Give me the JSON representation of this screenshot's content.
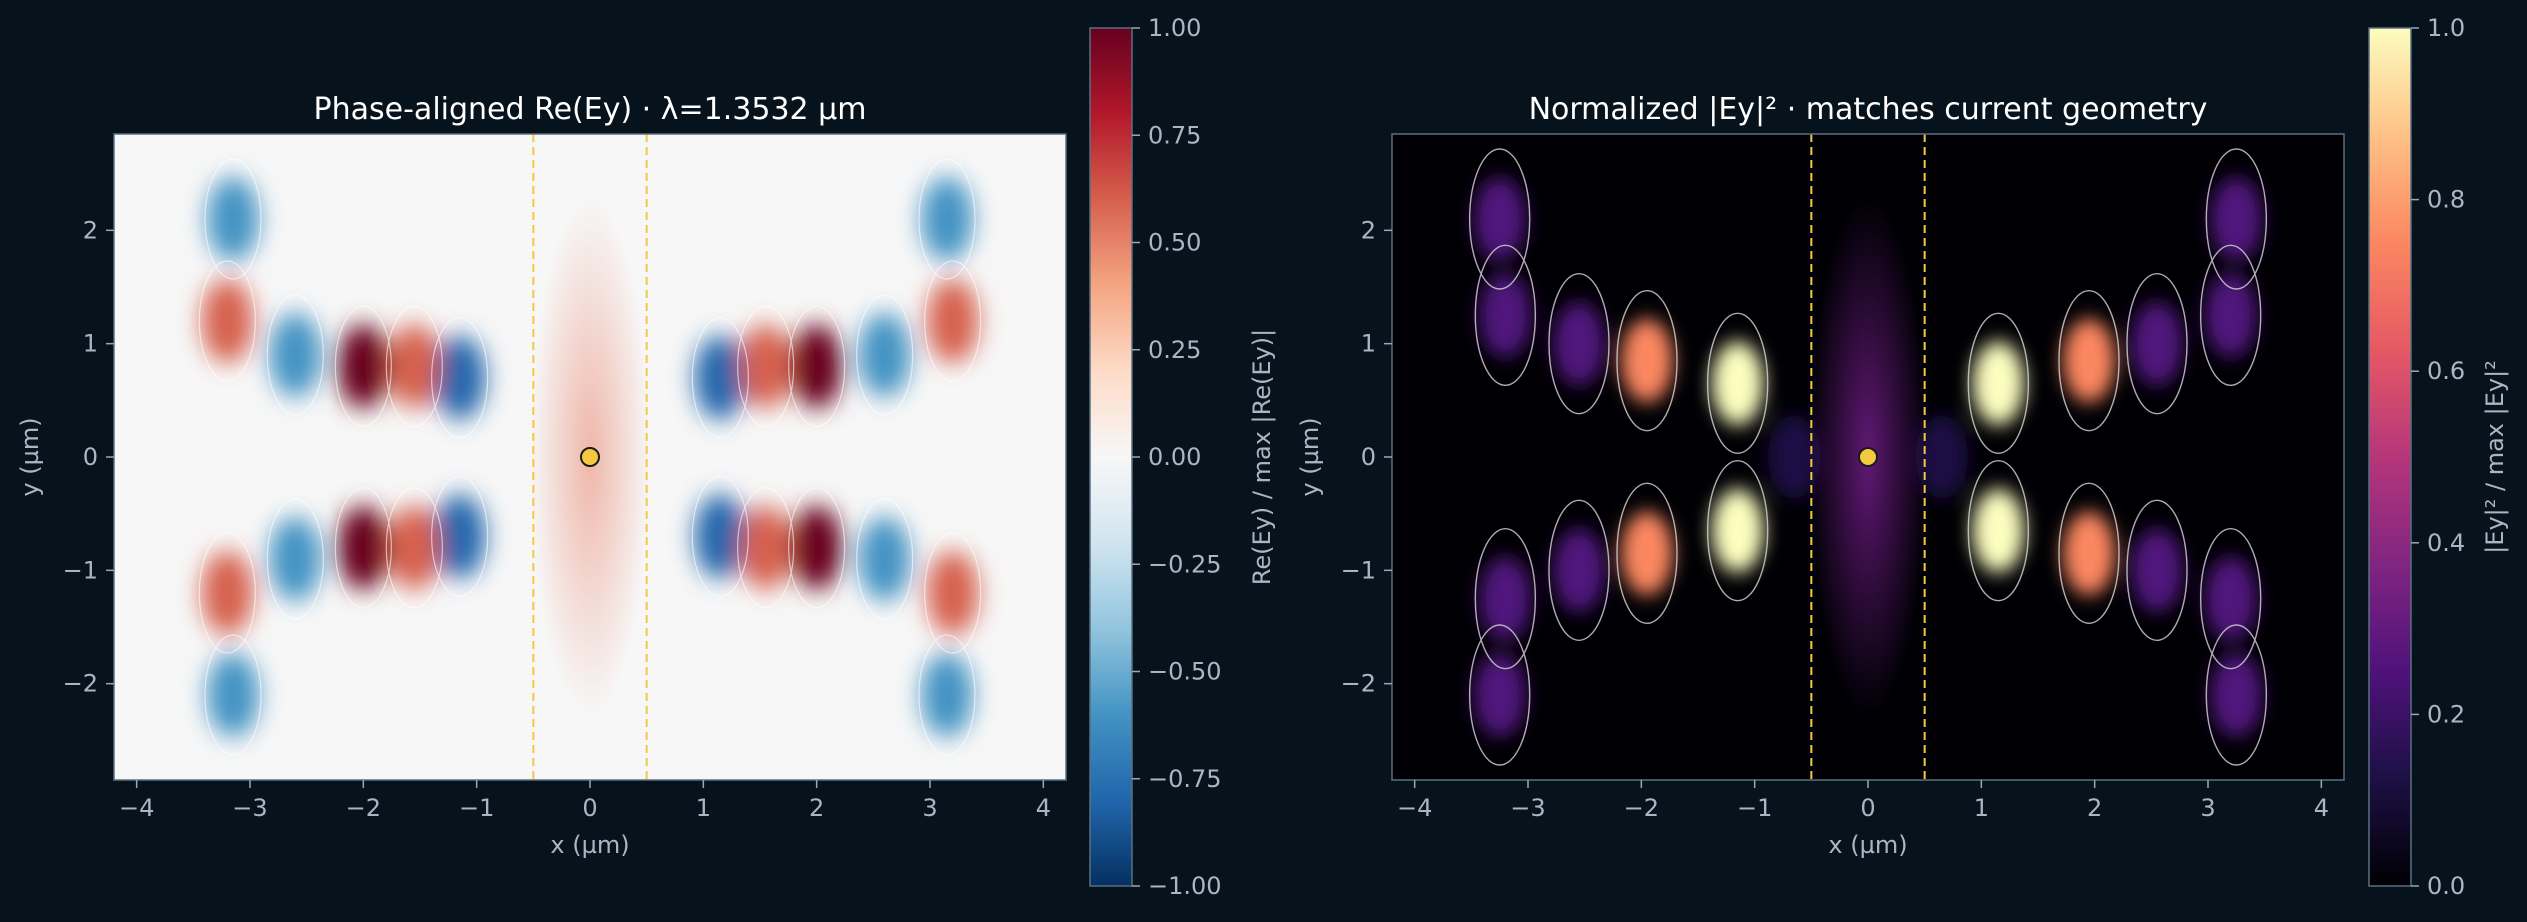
{
  "chart_data": [
    {
      "type": "heatmap",
      "title": "Phase-aligned Re(Ey) · λ=1.3532 µm",
      "xlabel": "x (µm)",
      "ylabel": "y (µm)",
      "xlim": [
        -4.2,
        4.2
      ],
      "ylim": [
        -2.85,
        2.85
      ],
      "xticks": [
        -4,
        -3,
        -2,
        -1,
        0,
        1,
        2,
        3,
        4
      ],
      "xtick_labels": [
        "−4",
        "−3",
        "−2",
        "−1",
        "0",
        "1",
        "2",
        "3",
        "4"
      ],
      "yticks": [
        -2,
        -1,
        0,
        1,
        2
      ],
      "ytick_labels": [
        "−2",
        "−1",
        "0",
        "1",
        "2"
      ],
      "colormap": "RdBu_r",
      "colorbar": {
        "label": "Re(Ey) / max |Re(Ey)|",
        "range": [
          -1.0,
          1.0
        ],
        "ticks": [
          1.0,
          0.75,
          0.5,
          0.25,
          0.0,
          -0.25,
          -0.5,
          -0.75,
          -1.0
        ],
        "tick_labels": [
          "1.00",
          "0.75",
          "0.50",
          "0.25",
          "0.00",
          "−0.25",
          "−0.50",
          "−0.75",
          "−1.00"
        ],
        "colors": [
          "#053061",
          "#2166ac",
          "#4393c3",
          "#92c5de",
          "#d1e5f0",
          "#f7f7f7",
          "#fddbc7",
          "#f4a582",
          "#d6604d",
          "#b2182b",
          "#67001f"
        ]
      },
      "dashed_lines_x": [
        -0.5,
        0.5
      ],
      "source_point": [
        0,
        0
      ],
      "hotspots": [
        {
          "x": -2.0,
          "y": 0.8,
          "v": 1.0
        },
        {
          "x": -2.0,
          "y": -0.8,
          "v": 1.0
        },
        {
          "x": -1.15,
          "y": 0.7,
          "v": -0.8
        },
        {
          "x": -1.15,
          "y": -0.7,
          "v": -0.8
        },
        {
          "x": -2.6,
          "y": 0.9,
          "v": -0.55
        },
        {
          "x": -2.6,
          "y": -0.9,
          "v": -0.55
        },
        {
          "x": -1.55,
          "y": 0.8,
          "v": 0.5
        },
        {
          "x": -1.55,
          "y": -0.8,
          "v": 0.5
        },
        {
          "x": -3.2,
          "y": 1.2,
          "v": 0.55
        },
        {
          "x": -3.2,
          "y": -1.2,
          "v": 0.55
        },
        {
          "x": -3.15,
          "y": 2.1,
          "v": -0.6
        },
        {
          "x": -3.15,
          "y": -2.1,
          "v": -0.6
        },
        {
          "x": 2.0,
          "y": 0.8,
          "v": 1.0
        },
        {
          "x": 2.0,
          "y": -0.8,
          "v": 1.0
        },
        {
          "x": 1.15,
          "y": 0.7,
          "v": -0.8
        },
        {
          "x": 1.15,
          "y": -0.7,
          "v": -0.8
        },
        {
          "x": 2.6,
          "y": 0.9,
          "v": -0.55
        },
        {
          "x": 2.6,
          "y": -0.9,
          "v": -0.55
        },
        {
          "x": 1.55,
          "y": 0.8,
          "v": 0.5
        },
        {
          "x": 1.55,
          "y": -0.8,
          "v": 0.5
        },
        {
          "x": 3.2,
          "y": 1.2,
          "v": 0.55
        },
        {
          "x": 3.2,
          "y": -1.2,
          "v": 0.55
        },
        {
          "x": 3.15,
          "y": 2.1,
          "v": -0.6
        },
        {
          "x": 3.15,
          "y": -2.1,
          "v": -0.6
        },
        {
          "x": 0.0,
          "y": 0.0,
          "v": 0.55
        }
      ]
    },
    {
      "type": "heatmap",
      "title": "Normalized |Ey|² · matches current geometry",
      "xlabel": "x (µm)",
      "ylabel": "y (µm)",
      "xlim": [
        -4.2,
        4.2
      ],
      "ylim": [
        -2.85,
        2.85
      ],
      "xticks": [
        -4,
        -3,
        -2,
        -1,
        0,
        1,
        2,
        3,
        4
      ],
      "xtick_labels": [
        "−4",
        "−3",
        "−2",
        "−1",
        "0",
        "1",
        "2",
        "3",
        "4"
      ],
      "yticks": [
        -2,
        -1,
        0,
        1,
        2
      ],
      "ytick_labels": [
        "−2",
        "−1",
        "0",
        "1",
        "2"
      ],
      "colormap": "magma",
      "colorbar": {
        "label": "|Ey|² / max |Ey|²",
        "range": [
          0.0,
          1.0
        ],
        "ticks": [
          1.0,
          0.8,
          0.6,
          0.4,
          0.2,
          0.0
        ],
        "tick_labels": [
          "1.0",
          "0.8",
          "0.6",
          "0.4",
          "0.2",
          "0.0"
        ],
        "colors": [
          "#000004",
          "#1c1044",
          "#4f127b",
          "#812581",
          "#b5367a",
          "#e55964",
          "#fb8761",
          "#fec287",
          "#fcfdbf"
        ]
      },
      "dashed_lines_x": [
        -0.5,
        0.5
      ],
      "source_point": [
        0,
        0
      ],
      "hotspots": [
        {
          "x": -1.15,
          "y": 0.65,
          "v": 1.0
        },
        {
          "x": -1.15,
          "y": -0.65,
          "v": 1.0
        },
        {
          "x": -1.95,
          "y": 0.85,
          "v": 0.8
        },
        {
          "x": -1.95,
          "y": -0.85,
          "v": 0.8
        },
        {
          "x": -2.55,
          "y": 1.0,
          "v": 0.3
        },
        {
          "x": -2.55,
          "y": -1.0,
          "v": 0.3
        },
        {
          "x": -3.2,
          "y": 1.25,
          "v": 0.3
        },
        {
          "x": -3.2,
          "y": -1.25,
          "v": 0.3
        },
        {
          "x": -3.25,
          "y": 2.1,
          "v": 0.3
        },
        {
          "x": -3.25,
          "y": -2.1,
          "v": 0.3
        },
        {
          "x": -0.65,
          "y": 0.0,
          "v": 0.18
        },
        {
          "x": 1.15,
          "y": 0.65,
          "v": 1.0
        },
        {
          "x": 1.15,
          "y": -0.65,
          "v": 1.0
        },
        {
          "x": 1.95,
          "y": 0.85,
          "v": 0.8
        },
        {
          "x": 1.95,
          "y": -0.85,
          "v": 0.8
        },
        {
          "x": 2.55,
          "y": 1.0,
          "v": 0.3
        },
        {
          "x": 2.55,
          "y": -1.0,
          "v": 0.3
        },
        {
          "x": 3.2,
          "y": 1.25,
          "v": 0.3
        },
        {
          "x": 3.2,
          "y": -1.25,
          "v": 0.3
        },
        {
          "x": 3.25,
          "y": 2.1,
          "v": 0.3
        },
        {
          "x": 3.25,
          "y": -2.1,
          "v": 0.3
        },
        {
          "x": 0.65,
          "y": 0.0,
          "v": 0.18
        },
        {
          "x": 0.0,
          "y": 0.0,
          "v": 0.4
        }
      ]
    }
  ],
  "colors": {
    "background": "#07131c",
    "text": "#a9b6c3",
    "title": "#ffffff",
    "dashed_line": "#f5c842",
    "source_fill": "#f5c842",
    "contour": "#d8d8d8"
  }
}
